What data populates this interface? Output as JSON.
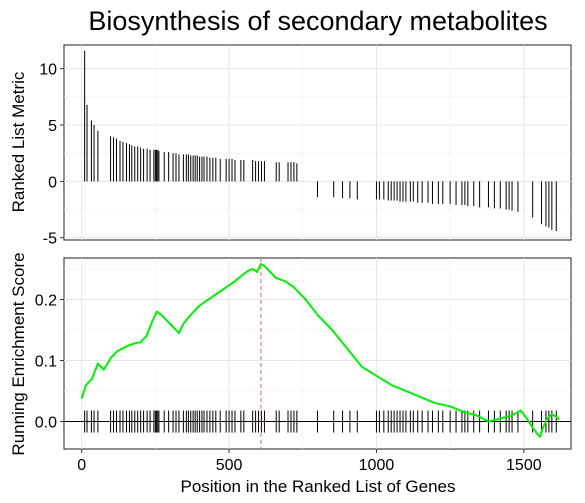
{
  "chart_data": {
    "title": "Biosynthesis of secondary metabolites",
    "xlabel": "Position in the Ranked List of Genes",
    "xlim": [
      -60,
      1660
    ],
    "xticks": [
      0,
      500,
      1000,
      1500
    ],
    "xtick_labels": [
      "0",
      "500",
      "1000",
      "1500"
    ],
    "grid": true,
    "panels": [
      {
        "type": "bar",
        "ylabel": "Ranked List Metric",
        "ylim": [
          -5.2,
          12.1
        ],
        "yticks": [
          -5,
          0,
          5,
          10
        ],
        "ytick_labels": [
          "-5",
          "0",
          "5",
          "10"
        ],
        "series": [
          {
            "x": [
              10,
              18,
              33,
              42,
              55,
              98,
              108,
              118,
              130,
              140,
              152,
              162,
              170,
              180,
              190,
              200,
              210,
              222,
              232,
              245,
              250,
              254,
              258,
              262,
              280,
              295,
              310,
              320,
              330,
              345,
              355,
              362,
              370,
              378,
              385,
              392,
              400,
              408,
              415,
              425,
              435,
              445,
              455,
              470,
              490,
              500,
              510,
              520,
              540,
              550,
              580,
              590,
              600,
              610,
              620,
              660,
              670,
              700,
              710,
              720,
              730,
              800,
              855,
              885,
              910,
              935,
              1000,
              1010,
              1025,
              1040,
              1050,
              1060,
              1070,
              1080,
              1090,
              1100,
              1115,
              1125,
              1140,
              1155,
              1175,
              1190,
              1210,
              1225,
              1250,
              1270,
              1290,
              1300,
              1310,
              1330,
              1350,
              1380,
              1400,
              1420,
              1440,
              1450,
              1460,
              1480,
              1530,
              1560,
              1575,
              1585,
              1595,
              1610
            ],
            "values": [
              11.6,
              6.8,
              5.4,
              5.0,
              4.5,
              4.0,
              3.9,
              3.8,
              3.6,
              3.5,
              3.4,
              3.3,
              3.2,
              3.1,
              3.1,
              3.0,
              2.9,
              2.9,
              2.8,
              2.8,
              2.8,
              2.8,
              2.8,
              2.7,
              2.6,
              2.6,
              2.5,
              2.5,
              2.4,
              2.4,
              2.4,
              2.4,
              2.3,
              2.3,
              2.3,
              2.3,
              2.2,
              2.2,
              2.2,
              2.2,
              2.1,
              2.1,
              2.1,
              2.0,
              2.0,
              2.0,
              2.0,
              1.9,
              1.9,
              1.9,
              1.9,
              1.8,
              1.8,
              1.8,
              1.8,
              1.7,
              1.7,
              1.7,
              1.7,
              1.7,
              1.6,
              -1.4,
              -1.4,
              -1.5,
              -1.5,
              -1.6,
              -1.6,
              -1.6,
              -1.6,
              -1.7,
              -1.7,
              -1.7,
              -1.7,
              -1.8,
              -1.8,
              -1.8,
              -1.8,
              -1.8,
              -1.9,
              -1.9,
              -1.9,
              -2.0,
              -2.0,
              -2.0,
              -2.0,
              -2.1,
              -2.1,
              -2.1,
              -2.2,
              -2.2,
              -2.3,
              -2.3,
              -2.4,
              -2.4,
              -2.5,
              -2.5,
              -2.6,
              -2.7,
              -3.2,
              -3.8,
              -4.0,
              -4.1,
              -4.3,
              -4.4
            ],
            "color": "#000000"
          }
        ]
      },
      {
        "type": "line",
        "ylabel": "Running Enrichment Score",
        "ylim": [
          -0.045,
          0.268
        ],
        "yticks": [
          0.0,
          0.1,
          0.2
        ],
        "ytick_labels": [
          "0.0",
          "0.1",
          "0.2"
        ],
        "series": [
          {
            "x": [
              0,
              15,
              35,
              55,
              75,
              100,
              120,
              140,
              160,
              180,
              200,
              220,
              240,
              255,
              270,
              290,
              310,
              330,
              345,
              370,
              400,
              430,
              460,
              490,
              520,
              545,
              565,
              580,
              595,
              608,
              620,
              640,
              660,
              690,
              720,
              760,
              800,
              850,
              900,
              950,
              1000,
              1050,
              1100,
              1150,
              1200,
              1250,
              1300,
              1340,
              1380,
              1420,
              1460,
              1490,
              1510,
              1530,
              1545,
              1555,
              1565,
              1580,
              1595,
              1610,
              1620
            ],
            "y": [
              0.038,
              0.06,
              0.07,
              0.095,
              0.085,
              0.105,
              0.115,
              0.12,
              0.125,
              0.128,
              0.13,
              0.14,
              0.165,
              0.18,
              0.175,
              0.165,
              0.155,
              0.145,
              0.16,
              0.175,
              0.19,
              0.2,
              0.21,
              0.22,
              0.23,
              0.24,
              0.247,
              0.25,
              0.245,
              0.258,
              0.255,
              0.245,
              0.235,
              0.23,
              0.22,
              0.2,
              0.175,
              0.15,
              0.12,
              0.09,
              0.075,
              0.06,
              0.05,
              0.04,
              0.03,
              0.025,
              0.015,
              0.01,
              0.0,
              0.005,
              0.01,
              0.018,
              0.005,
              -0.01,
              -0.02,
              -0.025,
              -0.01,
              0.005,
              0.012,
              0.008,
              0.003
            ],
            "color": "#00ee00"
          }
        ],
        "hits_x": [
          10,
          18,
          33,
          42,
          55,
          98,
          108,
          118,
          130,
          140,
          152,
          162,
          170,
          180,
          190,
          200,
          210,
          222,
          232,
          245,
          250,
          254,
          258,
          262,
          280,
          295,
          310,
          320,
          330,
          345,
          355,
          362,
          370,
          378,
          385,
          392,
          400,
          408,
          415,
          425,
          435,
          445,
          455,
          470,
          490,
          500,
          510,
          520,
          540,
          550,
          580,
          590,
          600,
          610,
          620,
          660,
          670,
          700,
          710,
          720,
          730,
          800,
          855,
          885,
          910,
          935,
          1000,
          1010,
          1025,
          1040,
          1050,
          1060,
          1070,
          1080,
          1090,
          1100,
          1115,
          1125,
          1140,
          1155,
          1175,
          1190,
          1210,
          1225,
          1250,
          1270,
          1290,
          1300,
          1310,
          1330,
          1350,
          1380,
          1400,
          1420,
          1440,
          1450,
          1460,
          1480,
          1530,
          1560,
          1575,
          1585,
          1595,
          1610
        ],
        "zero_line": 0.0,
        "peak_x": 608,
        "peak_line_color": "#e06666"
      }
    ]
  }
}
